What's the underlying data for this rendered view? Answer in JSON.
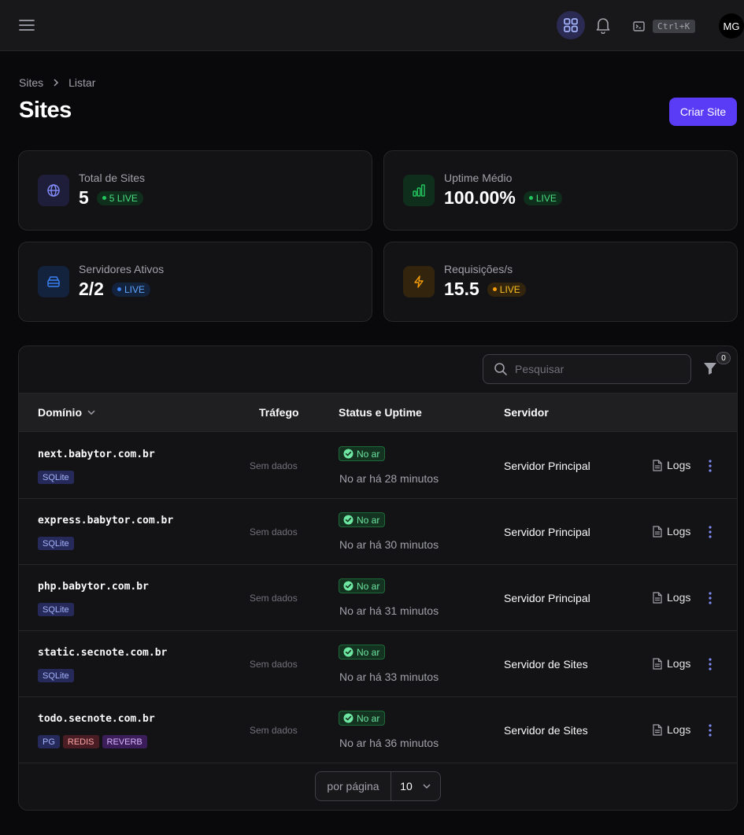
{
  "topbar": {
    "menu_icon": "hamburger-icon",
    "apps_icon": "grid-icon",
    "bell_icon": "bell-icon",
    "terminal_icon": "terminal-icon",
    "shortcut": "Ctrl+K",
    "avatar_initials": "MG"
  },
  "breadcrumb": {
    "items": [
      "Sites",
      "Listar"
    ]
  },
  "page": {
    "title": "Sites",
    "create_button": "Criar Site"
  },
  "stats": [
    {
      "label": "Total de Sites",
      "value": "5",
      "badge": "5 LIVE",
      "icon": "globe-icon",
      "color": "#818cf8"
    },
    {
      "label": "Uptime Médio",
      "value": "100.00%",
      "badge": "LIVE",
      "icon": "bar-chart-icon",
      "color": "#22c55e"
    },
    {
      "label": "Servidores Ativos",
      "value": "2/2",
      "badge": "LIVE",
      "icon": "server-icon",
      "color": "#3b82f6"
    },
    {
      "label": "Requisições/s",
      "value": "15.5",
      "badge": "LIVE",
      "icon": "bolt-icon",
      "color": "#f59e0b"
    }
  ],
  "table": {
    "search_placeholder": "Pesquisar",
    "filter_count": "0",
    "columns": [
      "Domínio",
      "Tráfego",
      "Status e Uptime",
      "Servidor"
    ],
    "rows": [
      {
        "domain": "next.babytor.com.br",
        "tags": [
          "SQLite"
        ],
        "traffic": "Sem dados",
        "status": "No ar",
        "uptime": "No ar há 28 minutos",
        "server": "Servidor Principal",
        "logs": "Logs"
      },
      {
        "domain": "express.babytor.com.br",
        "tags": [
          "SQLite"
        ],
        "traffic": "Sem dados",
        "status": "No ar",
        "uptime": "No ar há 30 minutos",
        "server": "Servidor Principal",
        "logs": "Logs"
      },
      {
        "domain": "php.babytor.com.br",
        "tags": [
          "SQLite"
        ],
        "traffic": "Sem dados",
        "status": "No ar",
        "uptime": "No ar há 31 minutos",
        "server": "Servidor Principal",
        "logs": "Logs"
      },
      {
        "domain": "static.secnote.com.br",
        "tags": [
          "SQLite"
        ],
        "traffic": "Sem dados",
        "status": "No ar",
        "uptime": "No ar há 33 minutos",
        "server": "Servidor de Sites",
        "logs": "Logs"
      },
      {
        "domain": "todo.secnote.com.br",
        "tags": [
          "PG",
          "REDIS",
          "REVERB"
        ],
        "traffic": "Sem dados",
        "status": "No ar",
        "uptime": "No ar há 36 minutos",
        "server": "Servidor de Sites",
        "logs": "Logs"
      }
    ],
    "pager_label": "por página",
    "per_page": "10"
  },
  "tag_colors": {
    "SQLite": {
      "bg": "#262a5a",
      "fg": "#a5b4fc"
    },
    "PG": {
      "bg": "#262a5a",
      "fg": "#a5b4fc"
    },
    "REDIS": {
      "bg": "#4a1d24",
      "fg": "#fca5a5"
    },
    "REVERB": {
      "bg": "#3b1d5a",
      "fg": "#d8b4fe"
    }
  }
}
